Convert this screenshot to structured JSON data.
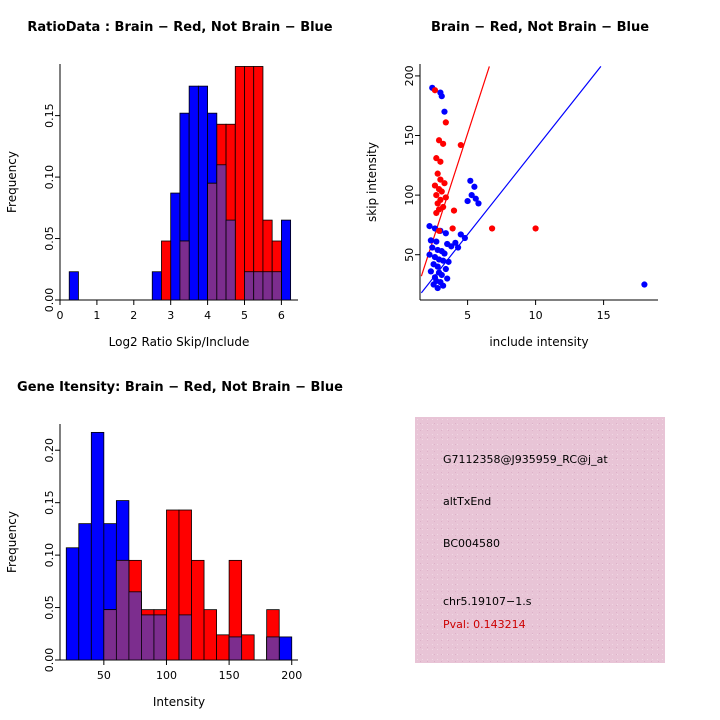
{
  "chart_data": [
    {
      "type": "histogram",
      "title": "RatioData : Brain − Red, Not Brain − Blue",
      "xlabel": "Log2 Ratio Skip/Include",
      "ylabel": "Frequency",
      "xlim": [
        0,
        6.45
      ],
      "ylim": [
        0,
        0.192
      ],
      "xticks": [
        0,
        1,
        2,
        3,
        4,
        5,
        6
      ],
      "yticks": [
        0,
        0.05,
        0.1,
        0.15
      ],
      "ytick_labels": [
        "0.00",
        "0.05",
        "0.10",
        "0.15"
      ],
      "bin_width": 0.25,
      "grid": false,
      "overlap_color": "#7c2d8e",
      "series": [
        {
          "name": "Not Brain",
          "color": "#0000FF",
          "bins": [
            [
              0.25,
              0.023
            ],
            [
              2.5,
              0.023
            ],
            [
              3.0,
              0.087
            ],
            [
              3.25,
              0.152
            ],
            [
              3.5,
              0.174
            ],
            [
              3.75,
              0.174
            ],
            [
              4.0,
              0.152
            ],
            [
              4.25,
              0.11
            ],
            [
              4.5,
              0.065
            ],
            [
              5.0,
              0.023
            ],
            [
              5.25,
              0.023
            ],
            [
              5.5,
              0.023
            ],
            [
              5.75,
              0.023
            ],
            [
              6.0,
              0.065
            ]
          ]
        },
        {
          "name": "Brain",
          "color": "#FF0000",
          "bins": [
            [
              2.75,
              0.048
            ],
            [
              3.25,
              0.048
            ],
            [
              4.0,
              0.095
            ],
            [
              4.25,
              0.143
            ],
            [
              4.5,
              0.143
            ],
            [
              4.75,
              0.19
            ],
            [
              5.0,
              0.19
            ],
            [
              5.25,
              0.19
            ],
            [
              5.5,
              0.065
            ],
            [
              5.75,
              0.048
            ]
          ]
        }
      ]
    },
    {
      "type": "scatter",
      "title": "Brain − Red, Not Brain − Blue",
      "xlabel": "include intensity",
      "ylabel": "skip intensity",
      "xlim": [
        1.5,
        19
      ],
      "ylim": [
        12,
        210
      ],
      "xticks": [
        5,
        10,
        15
      ],
      "yticks": [
        50,
        100,
        150,
        200
      ],
      "grid": false,
      "series": [
        {
          "name": "Not Brain",
          "color": "#0000FF",
          "points": [
            [
              2.4,
              190
            ],
            [
              3.0,
              186
            ],
            [
              3.1,
              183
            ],
            [
              3.3,
              170
            ],
            [
              5.2,
              112
            ],
            [
              5.5,
              107
            ],
            [
              5.3,
              100
            ],
            [
              5.6,
              97
            ],
            [
              5.0,
              95
            ],
            [
              5.8,
              93
            ],
            [
              2.2,
              74
            ],
            [
              2.6,
              72
            ],
            [
              3.0,
              70
            ],
            [
              3.4,
              68
            ],
            [
              4.5,
              67
            ],
            [
              4.8,
              64
            ],
            [
              2.3,
              62
            ],
            [
              2.7,
              61
            ],
            [
              3.5,
              59
            ],
            [
              3.8,
              57
            ],
            [
              2.4,
              56
            ],
            [
              2.8,
              54
            ],
            [
              3.1,
              53
            ],
            [
              3.3,
              51
            ],
            [
              4.1,
              60
            ],
            [
              4.3,
              56
            ],
            [
              2.2,
              50
            ],
            [
              2.6,
              48
            ],
            [
              2.9,
              46
            ],
            [
              3.2,
              45
            ],
            [
              3.6,
              44
            ],
            [
              2.5,
              42
            ],
            [
              2.8,
              40
            ],
            [
              3.4,
              38
            ],
            [
              2.3,
              36
            ],
            [
              2.9,
              35
            ],
            [
              3.1,
              33
            ],
            [
              2.6,
              31
            ],
            [
              3.5,
              30
            ],
            [
              2.7,
              28
            ],
            [
              3.0,
              27
            ],
            [
              2.5,
              25
            ],
            [
              3.2,
              24
            ],
            [
              2.8,
              22
            ],
            [
              18,
              25
            ]
          ]
        },
        {
          "name": "Brain",
          "color": "#FF0000",
          "points": [
            [
              2.6,
              188
            ],
            [
              3.4,
              161
            ],
            [
              2.9,
              146
            ],
            [
              3.2,
              143
            ],
            [
              4.5,
              142
            ],
            [
              2.7,
              131
            ],
            [
              3.0,
              128
            ],
            [
              2.8,
              118
            ],
            [
              3.0,
              113
            ],
            [
              3.3,
              110
            ],
            [
              2.6,
              108
            ],
            [
              2.9,
              105
            ],
            [
              3.1,
              103
            ],
            [
              2.7,
              100
            ],
            [
              3.4,
              98
            ],
            [
              3.0,
              96
            ],
            [
              2.8,
              93
            ],
            [
              3.2,
              90
            ],
            [
              2.9,
              88
            ],
            [
              4.0,
              87
            ],
            [
              2.7,
              85
            ],
            [
              3.9,
              72
            ],
            [
              6.8,
              72
            ],
            [
              10.0,
              72
            ],
            [
              2.9,
              70
            ]
          ]
        }
      ],
      "lines": [
        {
          "name": "brain-fit-line",
          "color": "#FF0000",
          "x1": 1.6,
          "y1": 32,
          "x2": 6.6,
          "y2": 208
        },
        {
          "name": "notbrain-fit-line",
          "color": "#0000FF",
          "x1": 1.6,
          "y1": 18,
          "x2": 14.8,
          "y2": 208
        }
      ]
    },
    {
      "type": "histogram",
      "title": "Gene Itensity: Brain − Red, Not Brain − Blue",
      "xlabel": "Intensity",
      "ylabel": "Frequency",
      "xlim": [
        15,
        205
      ],
      "ylim": [
        0,
        0.225
      ],
      "xticks": [
        50,
        100,
        150,
        200
      ],
      "yticks": [
        0,
        0.05,
        0.1,
        0.15,
        0.2
      ],
      "ytick_labels": [
        "0.00",
        "0.05",
        "0.10",
        "0.15",
        "0.20"
      ],
      "bin_width": 10,
      "grid": false,
      "overlap_color": "#7c2d8e",
      "series": [
        {
          "name": "Not Brain",
          "color": "#0000FF",
          "bins": [
            [
              20,
              0.107
            ],
            [
              30,
              0.13
            ],
            [
              40,
              0.217
            ],
            [
              50,
              0.13
            ],
            [
              60,
              0.152
            ],
            [
              70,
              0.065
            ],
            [
              80,
              0.043
            ],
            [
              90,
              0.043
            ],
            [
              110,
              0.043
            ],
            [
              150,
              0.022
            ],
            [
              180,
              0.022
            ],
            [
              190,
              0.022
            ]
          ]
        },
        {
          "name": "Brain",
          "color": "#FF0000",
          "bins": [
            [
              50,
              0.048
            ],
            [
              60,
              0.095
            ],
            [
              70,
              0.095
            ],
            [
              80,
              0.048
            ],
            [
              90,
              0.048
            ],
            [
              100,
              0.143
            ],
            [
              110,
              0.143
            ],
            [
              120,
              0.095
            ],
            [
              130,
              0.048
            ],
            [
              140,
              0.024
            ],
            [
              150,
              0.095
            ],
            [
              160,
              0.024
            ],
            [
              180,
              0.048
            ]
          ]
        }
      ]
    }
  ],
  "info_panel": {
    "background": "#e8c4d6",
    "lines": [
      {
        "text": "G7112358@J935959_RC@j_at",
        "color": "#000000"
      },
      {
        "text": "altTxEnd",
        "color": "#000000"
      },
      {
        "text": "BC004580",
        "color": "#000000"
      },
      {
        "text": "chr5.19107−1.s",
        "color": "#000000"
      },
      {
        "text": "Pval: 0.143214",
        "color": "#cc0000"
      }
    ]
  }
}
